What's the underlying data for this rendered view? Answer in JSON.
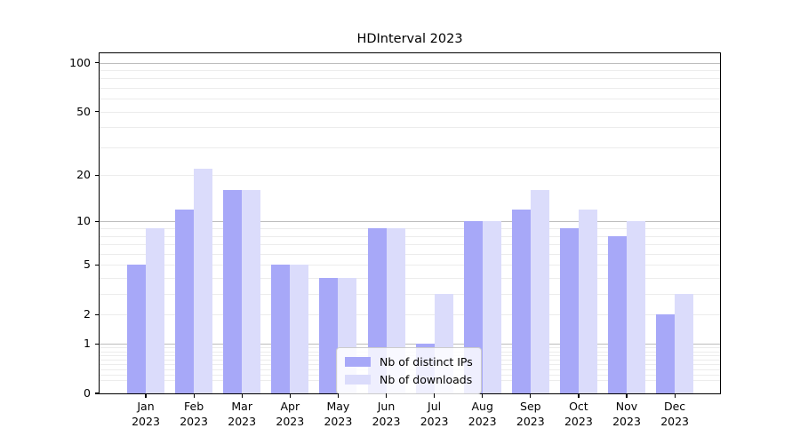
{
  "title": "HDInterval 2023",
  "chart_data": {
    "type": "bar",
    "title": "HDInterval 2023",
    "categories": [
      "Jan 2023",
      "Feb 2023",
      "Mar 2023",
      "Apr 2023",
      "May 2023",
      "Jun 2023",
      "Jul 2023",
      "Aug 2023",
      "Sep 2023",
      "Oct 2023",
      "Nov 2023",
      "Dec 2023"
    ],
    "series": [
      {
        "name": "Nb of distinct IPs",
        "color": "#a7a8f8",
        "values": [
          5,
          12,
          16,
          5,
          4,
          9,
          1,
          10,
          12,
          9,
          8,
          2
        ]
      },
      {
        "name": "Nb of downloads",
        "color": "#dbdcfb",
        "values": [
          9,
          22,
          16,
          5,
          4,
          9,
          3,
          10,
          16,
          12,
          10,
          3
        ]
      }
    ],
    "xlabel": "",
    "ylabel": "",
    "yscale": "log1p",
    "ylim": [
      0,
      114
    ],
    "yticks": [
      100,
      50,
      20,
      10,
      5,
      2,
      1,
      0
    ],
    "major_gridlines": [
      1,
      10,
      100
    ],
    "minor_gridlines": [
      0.2,
      0.3,
      0.4,
      0.5,
      0.6,
      0.7,
      0.8,
      0.9,
      2,
      3,
      4,
      5,
      6,
      7,
      8,
      9,
      20,
      30,
      40,
      50,
      60,
      70,
      80,
      90
    ],
    "grid": true,
    "legend_position": "lower center"
  },
  "colors": {
    "major_grid": "#bdbdbd",
    "minor_grid": "#ececec",
    "axis": "#000000"
  }
}
